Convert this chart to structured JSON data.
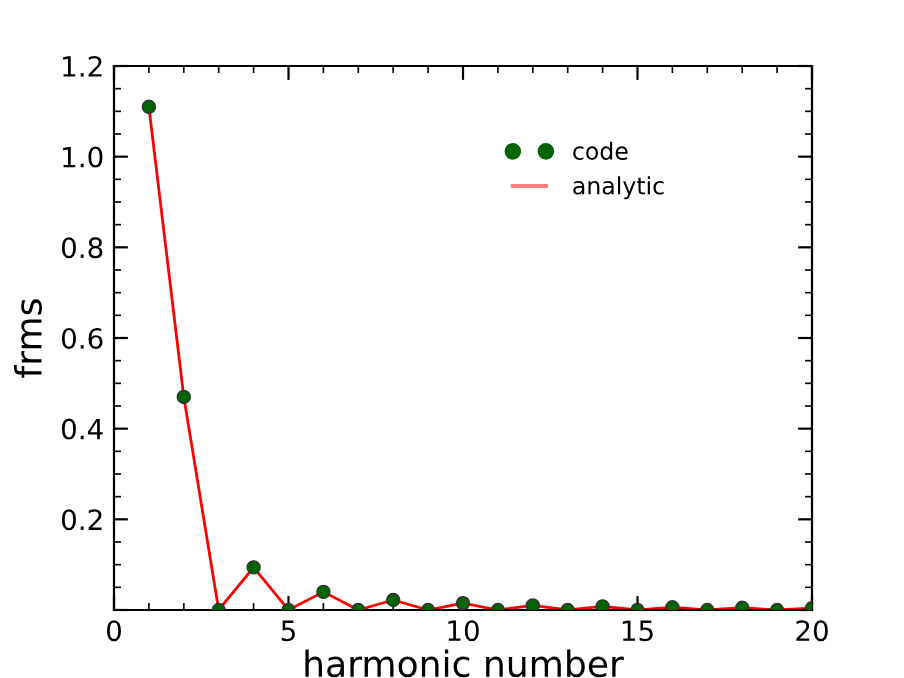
{
  "chart_data": {
    "type": "line",
    "xlabel": "harmonic number",
    "ylabel": "frms",
    "x": [
      1,
      2,
      3,
      4,
      5,
      6,
      7,
      8,
      9,
      10,
      11,
      12,
      13,
      14,
      15,
      16,
      17,
      18,
      19,
      20
    ],
    "series": [
      {
        "name": "code",
        "type": "scatter",
        "color": "#006400",
        "marker": "circle",
        "values": [
          1.11,
          0.47,
          0,
          0.094,
          0,
          0.04,
          0,
          0.022,
          0,
          0.015,
          0,
          0.01,
          0,
          0.008,
          0,
          0.006,
          0,
          0.005,
          0,
          0.004
        ]
      },
      {
        "name": "analytic",
        "color": "#ff0000",
        "marker": "none",
        "values": [
          1.11,
          0.47,
          0,
          0.094,
          0,
          0.04,
          0,
          0.022,
          0,
          0.015,
          0,
          0.01,
          0,
          0.008,
          0,
          0.006,
          0,
          0.005,
          0,
          0.004
        ]
      }
    ],
    "xlim": [
      0,
      20
    ],
    "xticks": [
      0,
      5,
      10,
      15,
      20
    ],
    "ylim": [
      0,
      1.2
    ],
    "yticks": [
      {
        "value": 0,
        "label": null
      },
      0.2,
      0.4,
      0.6,
      0.8,
      {
        "value": 1.0,
        "label": "1.0"
      },
      1.2
    ],
    "grid": false,
    "legend": "top right"
  }
}
